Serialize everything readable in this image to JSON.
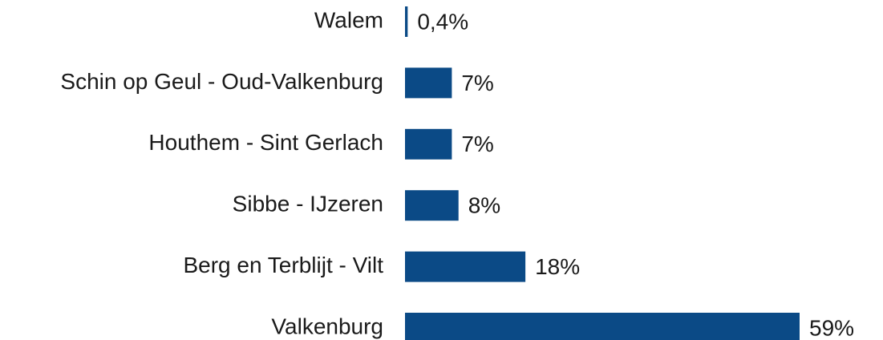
{
  "chart_data": {
    "type": "hbar",
    "categories": [
      "Walem",
      "Schin op Geul - Oud-Valkenburg",
      "Houthem - Sint Gerlach",
      "Sibbe - IJzeren",
      "Berg en Terblijt - Vilt",
      "Valkenburg"
    ],
    "values": [
      0.4,
      7,
      7,
      8,
      18,
      59
    ],
    "value_labels": [
      "0,4%",
      "7%",
      "7%",
      "8%",
      "18%",
      "59%"
    ],
    "color": "#0b4a86"
  }
}
